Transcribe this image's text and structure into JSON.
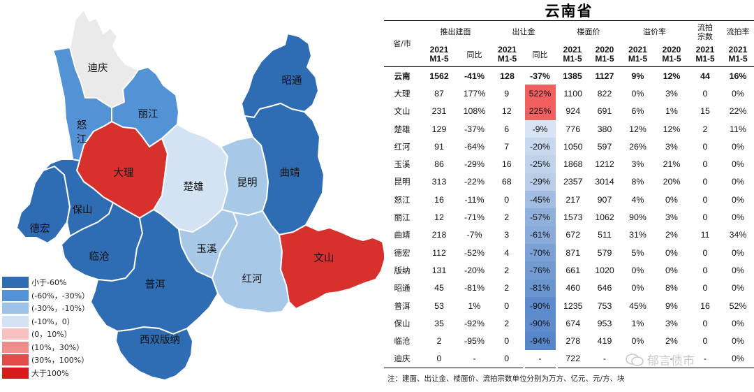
{
  "title": "云南省",
  "header": {
    "col_province": "省/市",
    "groups": [
      "推出建面",
      "出让金",
      "楼面价",
      "溢价率",
      "流拍宗数",
      "流拍率"
    ],
    "subcols": [
      "2021 M1-5",
      "同比",
      "2021 M1-5",
      "同比",
      "2021 M1-5",
      "2020 M1-5",
      "2021 M1-5",
      "2020 M1-5",
      "2021 M1-5",
      "2021 M1-5"
    ]
  },
  "note": "注：建面、出让金、楼面价、流拍宗数单位分别为万方、亿元、元/方、块",
  "watermark": "郁言债市",
  "legend": [
    {
      "label": "小于-60%",
      "color": "#2e6db4"
    },
    {
      "label": "(-60%，-30%）",
      "color": "#5392d4"
    },
    {
      "label": "(-30%，-10%）",
      "color": "#9dc3e8"
    },
    {
      "label": "(-10%，0）",
      "color": "#d4e3f3"
    },
    {
      "label": "(0，10%）",
      "color": "#f8c1c1"
    },
    {
      "label": "(10%，30%）",
      "color": "#f08c8c"
    },
    {
      "label": "(30%，100%）",
      "color": "#e34b4b"
    },
    {
      "label": "大于100%",
      "color": "#d81a1a"
    }
  ],
  "map_labels": {
    "diqing": "迪庆",
    "zhaotong": "昭通",
    "lijiang": "丽江",
    "nujiang": "怒江",
    "dali": "大理",
    "chuxiong": "楚雄",
    "kunming": "昆明",
    "qujing": "曲靖",
    "baoshan": "保山",
    "dehong": "德宏",
    "lincang": "临沧",
    "yuxi": "玉溪",
    "wenshan": "文山",
    "honghe": "红河",
    "puer": "普洱",
    "xishuangbanna": "西双版纳"
  },
  "map_colors": {
    "diqing": "#eaeaea",
    "zhaotong": "#2e6db4",
    "lijiang": "#5392d4",
    "nujiang": "#5392d4",
    "dali": "#d8302c",
    "chuxiong": "#d4e3f3",
    "kunming": "#a8c8e8",
    "qujing": "#2e6db4",
    "baoshan": "#2e6db4",
    "dehong": "#2e6db4",
    "lincang": "#2e6db4",
    "yuxi": "#a8c8e8",
    "wenshan": "#d8302c",
    "honghe": "#a8c8e8",
    "puer": "#2e6db4",
    "xishuangbanna": "#2e6db4"
  },
  "chart_data": {
    "type": "table",
    "title": "云南省",
    "rows": [
      {
        "name": "云南",
        "vals": [
          "1562",
          "-41%",
          "128",
          "-37%",
          "1385",
          "1127",
          "9%",
          "12%",
          "44",
          "16%"
        ],
        "land_yoy": -37,
        "bold": true
      },
      {
        "name": "大理",
        "vals": [
          "87",
          "177%",
          "9",
          "522%",
          "1100",
          "822",
          "0%",
          "3%",
          "0",
          "0%"
        ],
        "land_yoy": 522
      },
      {
        "name": "文山",
        "vals": [
          "231",
          "108%",
          "12",
          "225%",
          "924",
          "691",
          "6%",
          "1%",
          "15",
          "22%"
        ],
        "land_yoy": 225
      },
      {
        "name": "楚雄",
        "vals": [
          "129",
          "-37%",
          "6",
          "-9%",
          "776",
          "380",
          "12%",
          "12%",
          "2",
          "11%"
        ],
        "land_yoy": -9
      },
      {
        "name": "红河",
        "vals": [
          "91",
          "-64%",
          "7",
          "-20%",
          "1050",
          "597",
          "26%",
          "3%",
          "0",
          "0%"
        ],
        "land_yoy": -20
      },
      {
        "name": "玉溪",
        "vals": [
          "86",
          "-29%",
          "16",
          "-25%",
          "1868",
          "1212",
          "3%",
          "21%",
          "0",
          "0%"
        ],
        "land_yoy": -25
      },
      {
        "name": "昆明",
        "vals": [
          "313",
          "-22%",
          "68",
          "-29%",
          "2357",
          "3014",
          "8%",
          "20%",
          "0",
          "0%"
        ],
        "land_yoy": -29
      },
      {
        "name": "怒江",
        "vals": [
          "16",
          "-11%",
          "0",
          "-45%",
          "217",
          "907",
          "4%",
          "0%",
          "0",
          "0%"
        ],
        "land_yoy": -45
      },
      {
        "name": "丽江",
        "vals": [
          "12",
          "-71%",
          "2",
          "-57%",
          "1573",
          "1062",
          "90%",
          "3%",
          "0",
          "0%"
        ],
        "land_yoy": -57
      },
      {
        "name": "曲靖",
        "vals": [
          "218",
          "-7%",
          "3",
          "-61%",
          "672",
          "511",
          "31%",
          "2%",
          "11",
          "34%"
        ],
        "land_yoy": -61
      },
      {
        "name": "德宏",
        "vals": [
          "112",
          "-52%",
          "4",
          "-70%",
          "871",
          "579",
          "5%",
          "0%",
          "0",
          "0%"
        ],
        "land_yoy": -70
      },
      {
        "name": "版纳",
        "vals": [
          "131",
          "-20%",
          "2",
          "-76%",
          "661",
          "1020",
          "0%",
          "0%",
          "0",
          "0%"
        ],
        "land_yoy": -76
      },
      {
        "name": "昭通",
        "vals": [
          "45",
          "-81%",
          "2",
          "-81%",
          "460",
          "646",
          "0%",
          "8%",
          "0",
          "0%"
        ],
        "land_yoy": -81
      },
      {
        "name": "普洱",
        "vals": [
          "53",
          "1%",
          "0",
          "-90%",
          "1235",
          "753",
          "45%",
          "9%",
          "16",
          "52%"
        ],
        "land_yoy": -90
      },
      {
        "name": "保山",
        "vals": [
          "35",
          "-92%",
          "2",
          "-90%",
          "674",
          "953",
          "1%",
          "3%",
          "0",
          "0%"
        ],
        "land_yoy": -90
      },
      {
        "name": "临沧",
        "vals": [
          "2",
          "-95%",
          "0",
          "-94%",
          "278",
          "419",
          "0%",
          "2%",
          "0",
          "0%"
        ],
        "land_yoy": -94
      },
      {
        "name": "迪庆",
        "vals": [
          "0",
          "-",
          "0",
          "-",
          "722",
          "-",
          "-",
          "-",
          "-",
          "0%"
        ],
        "land_yoy": null
      }
    ]
  }
}
